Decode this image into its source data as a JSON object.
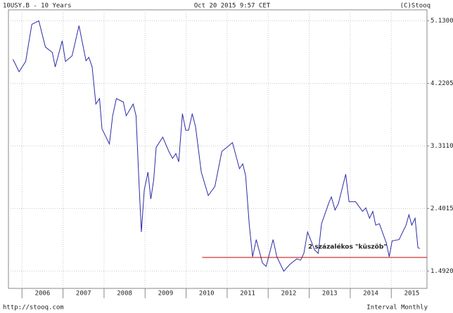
{
  "chart_data": {
    "type": "line",
    "title": "10USY.B - 10 Years",
    "subtitle": "Oct 20 2015 9:57 CET",
    "credit": "(C)Stooq",
    "source": "http://stooq.com",
    "interval": "Interval Monthly",
    "x": [
      2005.78,
      2005.93,
      2006.09,
      2006.24,
      2006.41,
      2006.57,
      2006.74,
      2006.81,
      2006.98,
      2007.06,
      2007.22,
      2007.39,
      2007.56,
      2007.63,
      2007.71,
      2007.8,
      2007.89,
      2007.95,
      2008.13,
      2008.21,
      2008.3,
      2008.47,
      2008.54,
      2008.71,
      2008.78,
      2008.86,
      2008.91,
      2008.98,
      2009.07,
      2009.14,
      2009.21,
      2009.27,
      2009.43,
      2009.58,
      2009.67,
      2009.75,
      2009.82,
      2009.91,
      2009.99,
      2010.06,
      2010.15,
      2010.23,
      2010.37,
      2010.54,
      2010.7,
      2010.87,
      2011.13,
      2011.3,
      2011.38,
      2011.45,
      2011.54,
      2011.62,
      2011.71,
      2011.86,
      2011.95,
      2012.12,
      2012.21,
      2012.38,
      2012.53,
      2012.7,
      2012.79,
      2012.87,
      2012.96,
      2013.13,
      2013.22,
      2013.3,
      2013.47,
      2013.54,
      2013.63,
      2013.71,
      2013.89,
      2013.97,
      2014.13,
      2014.3,
      2014.38,
      2014.47,
      2014.55,
      2014.62,
      2014.71,
      2014.88,
      2014.95,
      2015.02,
      2015.19,
      2015.36,
      2015.43,
      2015.5,
      2015.58,
      2015.65,
      2015.7
    ],
    "series": [
      {
        "color": "#2b2ba6",
        "values": [
          4.57,
          4.39,
          4.54,
          5.08,
          5.13,
          4.75,
          4.67,
          4.46,
          4.84,
          4.54,
          4.62,
          5.06,
          4.55,
          4.6,
          4.46,
          3.92,
          4.0,
          3.56,
          3.34,
          3.75,
          4.0,
          3.95,
          3.75,
          3.92,
          3.75,
          2.67,
          2.06,
          2.67,
          2.93,
          2.54,
          2.82,
          3.29,
          3.44,
          3.23,
          3.13,
          3.2,
          3.08,
          3.78,
          3.54,
          3.54,
          3.78,
          3.59,
          2.93,
          2.59,
          2.72,
          3.23,
          3.36,
          2.98,
          3.05,
          2.88,
          2.16,
          1.7,
          1.95,
          1.61,
          1.56,
          1.95,
          1.7,
          1.49,
          1.59,
          1.67,
          1.65,
          1.75,
          2.06,
          1.8,
          1.75,
          2.18,
          2.47,
          2.57,
          2.38,
          2.47,
          2.9,
          2.5,
          2.5,
          2.36,
          2.41,
          2.26,
          2.36,
          2.16,
          2.18,
          1.9,
          1.7,
          1.93,
          1.95,
          2.16,
          2.31,
          2.16,
          2.26,
          1.83,
          1.82
        ]
      }
    ],
    "xlim": [
      2005.67,
      2015.87
    ],
    "xticks": [
      2006,
      2007,
      2008,
      2009,
      2010,
      2011,
      2012,
      2013,
      2014,
      2015
    ],
    "ylim": [
      1.24,
      5.29
    ],
    "yticks": [
      {
        "value": 1.492,
        "label": "1.4920"
      },
      {
        "value": 2.4015,
        "label": "2.4015"
      },
      {
        "value": 3.311,
        "label": "3.3110"
      },
      {
        "value": 4.2205,
        "label": "4.2205"
      },
      {
        "value": 5.13,
        "label": "5.1300"
      }
    ],
    "grid": true,
    "annotation": {
      "text": "2 százalékos \"küszöb\"",
      "value": 1.69,
      "x_start": 2010.39,
      "color": "#cc0000"
    }
  }
}
